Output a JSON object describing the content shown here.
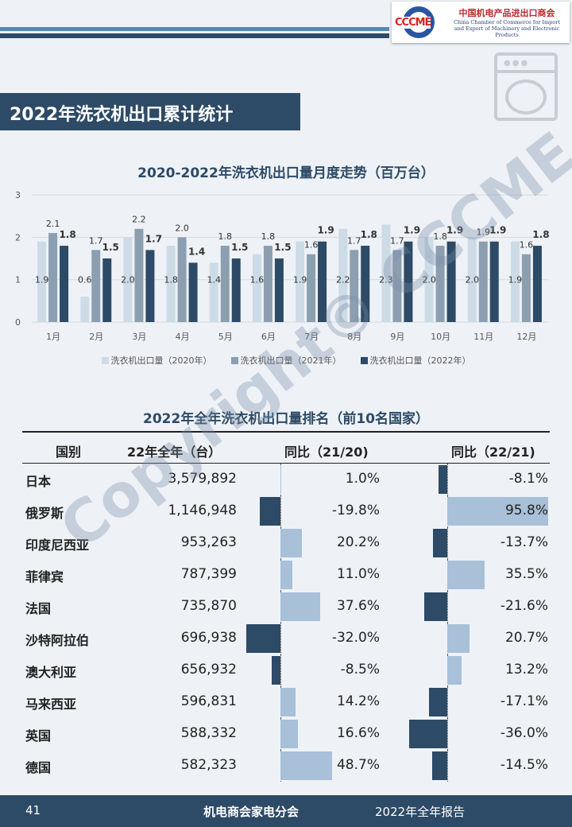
{
  "header": {
    "logo_abbr": "CCCME",
    "logo_cn": "中国机电产品进出口商会",
    "logo_en1": "China Chamber of Commerce for Import",
    "logo_en2": "and Export of Machinery and Electronic Products"
  },
  "section_title": "2022年洗衣机出口累计统计",
  "chart_data": {
    "type": "bar",
    "title": "2020-2022年洗衣机出口量月度走势（百万台）",
    "categories": [
      "1月",
      "2月",
      "3月",
      "4月",
      "5月",
      "6月",
      "7月",
      "8月",
      "9月",
      "10月",
      "11月",
      "12月"
    ],
    "ylim": [
      0,
      3
    ],
    "yticks": [
      "0",
      "1",
      "2",
      "3"
    ],
    "grid": true,
    "legend": "bottom",
    "series": [
      {
        "name": "洗衣机出口量（2020年）",
        "color": "#cddbe7",
        "values": [
          1.9,
          0.6,
          2.0,
          1.8,
          1.4,
          1.6,
          1.9,
          2.2,
          2.3,
          2.0,
          2.0,
          1.9
        ]
      },
      {
        "name": "洗衣机出口量（2021年）",
        "color": "#8c9fb1",
        "values": [
          2.1,
          1.7,
          2.2,
          2.0,
          1.8,
          1.8,
          1.6,
          1.7,
          1.7,
          1.8,
          1.9,
          1.6
        ]
      },
      {
        "name": "洗衣机出口量（2022年）",
        "color": "#2d4a66",
        "values": [
          1.8,
          1.5,
          1.7,
          1.4,
          1.5,
          1.5,
          1.9,
          1.8,
          1.9,
          1.9,
          1.9,
          1.8
        ]
      }
    ]
  },
  "ranking": {
    "title": "2022年全年洗衣机出口量排名（前10名国家）",
    "headers": [
      "国别",
      "22年全年（台）",
      "同比（21/20)",
      "同比（22/21)"
    ],
    "rows": [
      [
        "日本",
        "3,579,892",
        1.0,
        -8.1
      ],
      [
        "俄罗斯",
        "1,146,948",
        -19.8,
        95.8
      ],
      [
        "印度尼西亚",
        "953,263",
        20.2,
        -13.7
      ],
      [
        "菲律宾",
        "787,399",
        11.0,
        35.5
      ],
      [
        "法国",
        "735,870",
        37.6,
        -21.6
      ],
      [
        "沙特阿拉伯",
        "696,938",
        -32.0,
        20.7
      ],
      [
        "澳大利亚",
        "656,932",
        -8.5,
        13.2
      ],
      [
        "马来西亚",
        "596,831",
        14.2,
        -17.1
      ],
      [
        "英国",
        "588,332",
        16.6,
        -36.0
      ],
      [
        "德国",
        "582,323",
        48.7,
        -14.5
      ]
    ],
    "pos_color": "#a8c0d8",
    "neg_color": "#2d4a66"
  },
  "watermark": "Copyright© CCCME",
  "footer": {
    "page": "41",
    "org": "机电商会家电分会",
    "report": "2022年全年报告"
  }
}
